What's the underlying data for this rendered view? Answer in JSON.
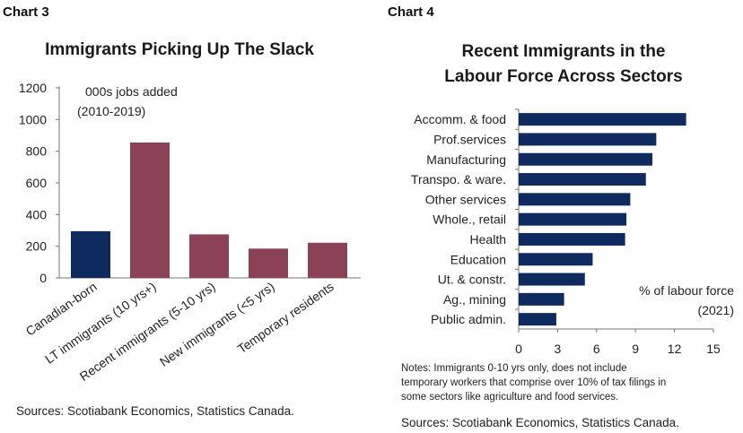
{
  "chart_data": [
    {
      "label": "Chart 3",
      "type": "bar",
      "title": "Immigrants Picking Up The Slack",
      "annotation": [
        "000s jobs added",
        "(2010-2019)"
      ],
      "categories": [
        "Canadian-born",
        "LT immigrants (10 yrs+)",
        "Recent immigrants (5-10 yrs)",
        "New immigrants (<5 yrs)",
        "Temporary residents"
      ],
      "values": [
        295,
        855,
        275,
        185,
        222
      ],
      "colors": [
        "#0e2a5e",
        "#8c4256",
        "#8c4256",
        "#8c4256",
        "#8c4256"
      ],
      "ylim": [
        0,
        1200
      ],
      "yticks": [
        "0",
        "200",
        "400",
        "600",
        "800",
        "1000",
        "1200"
      ],
      "source": "Sources: Scotiabank Economics, Statistics Canada."
    },
    {
      "label": "Chart 4",
      "type": "bar",
      "orientation": "horizontal",
      "title": [
        "Recent Immigrants in the",
        "Labour Force Across Sectors"
      ],
      "annotation": [
        "% of labour force",
        "(2021)"
      ],
      "categories": [
        "Accomm. & food",
        "Prof.services",
        "Manufacturing",
        "Transpo. & ware.",
        "Other services",
        "Whole., retail",
        "Health",
        "Education",
        "Ut. & constr.",
        "Ag., mining",
        "Public admin."
      ],
      "values": [
        12.9,
        10.6,
        10.3,
        9.8,
        8.6,
        8.3,
        8.2,
        5.7,
        5.1,
        3.5,
        2.9
      ],
      "color": "#0e2a5e",
      "xlim": [
        0,
        15
      ],
      "xticks": [
        "0",
        "3",
        "6",
        "9",
        "12",
        "15"
      ],
      "notes": [
        "Notes: Immigrants 0-10 yrs only, does not include",
        "temporary workers that comprise over 10% of tax filings in",
        "some sectors like agriculture and food services."
      ],
      "source": "Sources: Scotiabank Economics, Statistics Canada."
    }
  ]
}
